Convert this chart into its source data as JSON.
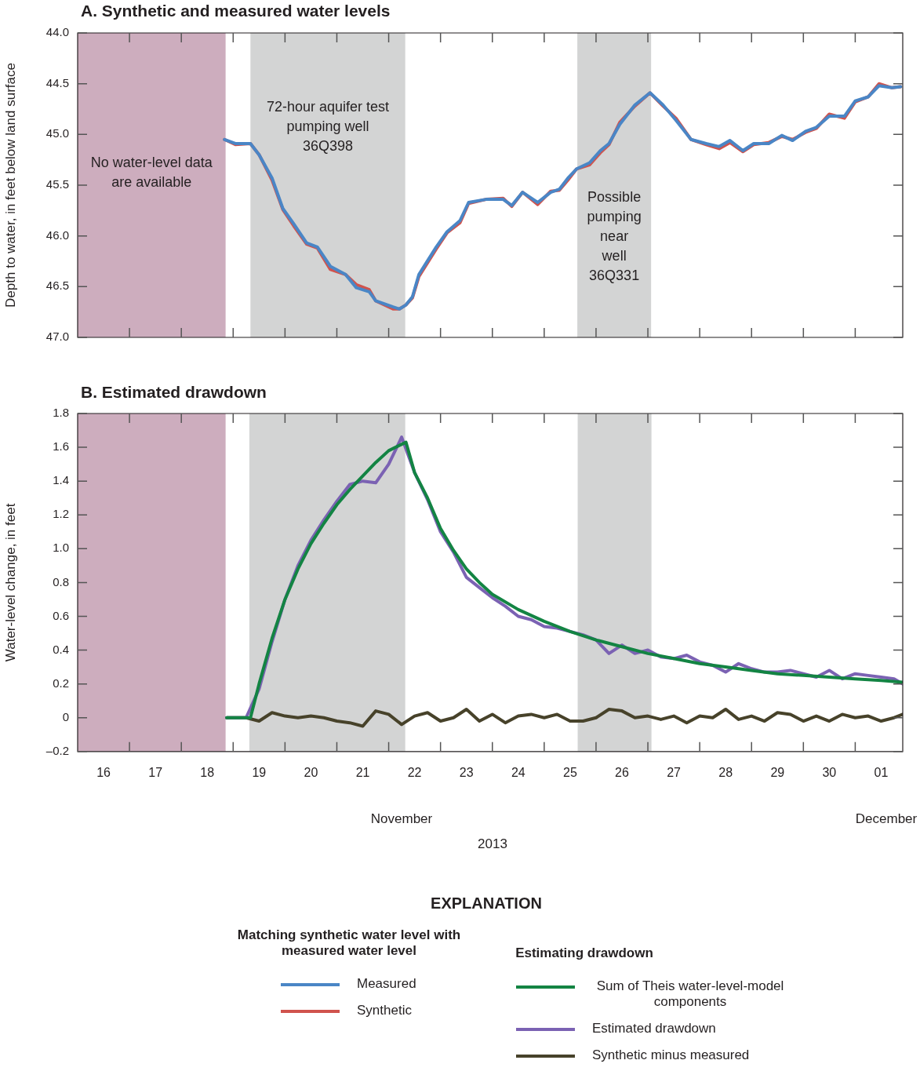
{
  "chart_data": [
    {
      "type": "line",
      "title": "A. Synthetic and measured water levels",
      "ylabel": "Depth to water, in feet below land surface",
      "legend": "bottom",
      "legend_title": "Matching synthetic water level with measured water level",
      "annotations": [
        "EXPLANATION"
      ],
      "marker": "none",
      "tick_labels": "y",
      "xlim": [
        "2013-11-16T00:00",
        "2013-12-01T22:00"
      ],
      "xticks": [
        {
          "value": "2013-11-17",
          "label": null
        },
        {
          "value": "2013-11-18",
          "label": null
        },
        {
          "value": "2013-11-19",
          "label": null
        },
        {
          "value": "2013-11-20",
          "label": null
        },
        {
          "value": "2013-11-21",
          "label": null
        },
        {
          "value": "2013-11-22",
          "label": null
        },
        {
          "value": "2013-11-23",
          "label": null
        },
        {
          "value": "2013-11-24",
          "label": null
        },
        {
          "value": "2013-11-25",
          "label": null
        },
        {
          "value": "2013-11-26",
          "label": null
        },
        {
          "value": "2013-11-27",
          "label": null
        },
        {
          "value": "2013-11-28",
          "label": null
        },
        {
          "value": "2013-11-29",
          "label": null
        },
        {
          "value": "2013-11-30",
          "label": null
        },
        {
          "value": "2013-12-01",
          "label": null
        }
      ],
      "ylim": [
        47,
        44
      ],
      "yticks": [
        {
          "value": 44,
          "label": "44.0"
        },
        44.5,
        {
          "value": 45,
          "label": "45.0"
        },
        45.5,
        {
          "value": 46,
          "label": "46.0"
        },
        46.5,
        {
          "value": 47,
          "label": "47.0"
        }
      ],
      "bands": [
        {
          "axis": "x",
          "from": "2013-11-16T00:00",
          "to": "2013-11-18T20:30",
          "label": "No water-level data are available",
          "color": "#cdadbe"
        },
        {
          "axis": "x",
          "from": "2013-11-19T08:00",
          "to": "2013-11-22T07:40",
          "label": "72-hour aquifer test pumping well 36Q398",
          "color": "#d3d4d4"
        },
        {
          "axis": "x",
          "from": "2013-11-25T15:20",
          "to": "2013-11-27T01:30",
          "label": "Possible pumping near well 36Q331",
          "color": "#d3d4d4"
        }
      ],
      "x": [
        "2013-11-18T20:00",
        "2013-11-19T01:00",
        "2013-11-19T08:00",
        "2013-11-19T12:00",
        "2013-11-19T18:00",
        "2013-11-19T23:00",
        "2013-11-20T04:00",
        "2013-11-20T10:00",
        "2013-11-20T15:00",
        "2013-11-20T21:00",
        "2013-11-21T04:00",
        "2013-11-21T09:00",
        "2013-11-21T15:00",
        "2013-11-21T18:00",
        "2013-11-22T02:00",
        "2013-11-22T05:00",
        "2013-11-22T08:00",
        "2013-11-22T11:00",
        "2013-11-22T14:00",
        "2013-11-22T22:00",
        "2013-11-23T03:00",
        "2013-11-23T09:00",
        "2013-11-23T13:00",
        "2013-11-23T21:00",
        "2013-11-24T05:00",
        "2013-11-24T09:00",
        "2013-11-24T14:00",
        "2013-11-24T21:00",
        "2013-11-25T03:00",
        "2013-11-25T07:00",
        "2013-11-25T11:00",
        "2013-11-25T15:00",
        "2013-11-25T21:00",
        "2013-11-26T02:00",
        "2013-11-26T06:00",
        "2013-11-26T11:00",
        "2013-11-26T18:00",
        "2013-11-27T01:00",
        "2013-11-27T07:00",
        "2013-11-27T13:00",
        "2013-11-27T20:00",
        "2013-11-28T03:00",
        "2013-11-28T09:00",
        "2013-11-28T14:00",
        "2013-11-28T20:00",
        "2013-11-29T01:00",
        "2013-11-29T08:00",
        "2013-11-29T14:00",
        "2013-11-29T19:00",
        "2013-11-30T01:00",
        "2013-11-30T06:00",
        "2013-11-30T12:00",
        "2013-11-30T19:00",
        "2013-12-01T00:00",
        "2013-12-01T06:00",
        "2013-12-01T11:00",
        "2013-12-01T17:00",
        "2013-12-01T21:00"
      ],
      "series": [
        {
          "name": "Measured",
          "color": "#4a86c6",
          "values": [
            45.05,
            45.09,
            45.09,
            45.2,
            45.43,
            45.73,
            45.88,
            46.07,
            46.11,
            46.3,
            46.38,
            46.51,
            46.55,
            46.64,
            46.7,
            46.72,
            46.68,
            46.6,
            46.38,
            46.11,
            45.96,
            45.85,
            45.67,
            45.64,
            45.64,
            45.7,
            45.57,
            45.67,
            45.57,
            45.54,
            45.43,
            45.34,
            45.28,
            45.16,
            45.09,
            44.9,
            44.71,
            44.59,
            44.71,
            44.86,
            45.05,
            45.09,
            45.12,
            45.06,
            45.16,
            45.09,
            45.09,
            45.01,
            45.06,
            44.97,
            44.93,
            44.82,
            44.82,
            44.67,
            44.63,
            44.52,
            44.54,
            44.53
          ]
        },
        {
          "name": "Synthetic",
          "color": "#d0534d",
          "values": [
            45.05,
            45.1,
            45.09,
            45.2,
            45.45,
            45.74,
            45.9,
            46.08,
            46.12,
            46.33,
            46.38,
            46.48,
            46.53,
            46.64,
            46.72,
            46.72,
            46.68,
            46.61,
            46.4,
            46.13,
            45.97,
            45.87,
            45.68,
            45.64,
            45.63,
            45.71,
            45.57,
            45.69,
            45.56,
            45.55,
            45.45,
            45.34,
            45.3,
            45.18,
            45.1,
            44.88,
            44.72,
            44.59,
            44.72,
            44.84,
            45.05,
            45.1,
            45.14,
            45.08,
            45.17,
            45.1,
            45.08,
            45.02,
            45.05,
            44.98,
            44.94,
            44.8,
            44.84,
            44.68,
            44.63,
            44.5,
            44.54,
            44.53
          ]
        }
      ]
    },
    {
      "type": "line",
      "title": "B. Estimated drawdown",
      "ylabel": "Water-level change, in feet",
      "xlabel": "2013",
      "legend": "bottom",
      "legend_title": "Estimating drawdown",
      "annotations": [
        "November",
        "December"
      ],
      "marker": "none",
      "xlim": [
        "2013-11-16T00:00",
        "2013-12-01T22:00"
      ],
      "xticks": [
        {
          "value": "2013-11-16T12:00",
          "label": "16"
        },
        {
          "value": "2013-11-17",
          "label": null
        },
        {
          "value": "2013-11-17T12:00",
          "label": "17"
        },
        {
          "value": "2013-11-18",
          "label": null
        },
        {
          "value": "2013-11-18T12:00",
          "label": "18"
        },
        {
          "value": "2013-11-19",
          "label": null
        },
        {
          "value": "2013-11-19T12:00",
          "label": "19"
        },
        {
          "value": "2013-11-20",
          "label": null
        },
        {
          "value": "2013-11-20T12:00",
          "label": "20"
        },
        {
          "value": "2013-11-21",
          "label": null
        },
        {
          "value": "2013-11-21T12:00",
          "label": "21"
        },
        {
          "value": "2013-11-22",
          "label": null
        },
        {
          "value": "2013-11-22T12:00",
          "label": "22"
        },
        {
          "value": "2013-11-23",
          "label": null
        },
        {
          "value": "2013-11-23T12:00",
          "label": "23"
        },
        {
          "value": "2013-11-24",
          "label": null
        },
        {
          "value": "2013-11-24T12:00",
          "label": "24"
        },
        {
          "value": "2013-11-25",
          "label": null
        },
        {
          "value": "2013-11-25T12:00",
          "label": "25"
        },
        {
          "value": "2013-11-26",
          "label": null
        },
        {
          "value": "2013-11-26T12:00",
          "label": "26"
        },
        {
          "value": "2013-11-27",
          "label": null
        },
        {
          "value": "2013-11-27T12:00",
          "label": "27"
        },
        {
          "value": "2013-11-28",
          "label": null
        },
        {
          "value": "2013-11-28T12:00",
          "label": "28"
        },
        {
          "value": "2013-11-29",
          "label": null
        },
        {
          "value": "2013-11-29T12:00",
          "label": "29"
        },
        {
          "value": "2013-11-30",
          "label": null
        },
        {
          "value": "2013-11-30T12:00",
          "label": "30"
        },
        {
          "value": "2013-12-01",
          "label": null
        },
        {
          "value": "2013-12-01T12:00",
          "label": "01"
        }
      ],
      "ylim": [
        -0.2,
        1.8
      ],
      "yticks": [
        {
          "value": -0.2,
          "label": "–0.2"
        },
        0,
        0.2,
        0.4,
        0.6,
        0.8,
        {
          "value": 1,
          "label": "1.0"
        },
        1.2,
        1.4,
        1.6,
        1.8
      ],
      "bands": [
        {
          "axis": "x",
          "from": "2013-11-16T00:00",
          "to": "2013-11-18T20:30",
          "color": "#cdadbe"
        },
        {
          "axis": "x",
          "from": "2013-11-19T07:30",
          "to": "2013-11-22T07:40",
          "color": "#d3d4d4"
        },
        {
          "axis": "x",
          "from": "2013-11-25T15:30",
          "to": "2013-11-27T01:40",
          "color": "#d3d4d4"
        }
      ],
      "series": [
        {
          "name": "Sum of Theis water-level-model components",
          "color": "#138443",
          "x": [
            "2013-11-18T21:00",
            "2013-11-19T08:00",
            "2013-11-19T12:00",
            "2013-11-19T18:00",
            "2013-11-20T00:00",
            "2013-11-20T06:00",
            "2013-11-20T12:00",
            "2013-11-20T18:00",
            "2013-11-21T00:00",
            "2013-11-21T06:00",
            "2013-11-21T12:00",
            "2013-11-21T18:00",
            "2013-11-22T00:00",
            "2013-11-22T08:00",
            "2013-11-22T12:00",
            "2013-11-22T18:00",
            "2013-11-23T00:00",
            "2013-11-23T06:00",
            "2013-11-23T12:00",
            "2013-11-23T18:00",
            "2013-11-24T00:00",
            "2013-11-24T12:00",
            "2013-11-25T00:00",
            "2013-11-25T12:00",
            "2013-11-26T00:00",
            "2013-11-26T12:00",
            "2013-11-27T00:00",
            "2013-11-27T12:00",
            "2013-11-28T00:00",
            "2013-11-28T12:00",
            "2013-11-29T00:00",
            "2013-11-29T12:00",
            "2013-11-30T00:00",
            "2013-11-30T12:00",
            "2013-12-01T00:00",
            "2013-12-01T12:00",
            "2013-12-01T22:00"
          ],
          "values": [
            0,
            0,
            0.2,
            0.47,
            0.7,
            0.88,
            1.03,
            1.15,
            1.26,
            1.35,
            1.43,
            1.51,
            1.58,
            1.63,
            1.45,
            1.3,
            1.12,
            0.99,
            0.88,
            0.8,
            0.73,
            0.64,
            0.57,
            0.51,
            0.46,
            0.42,
            0.38,
            0.35,
            0.32,
            0.3,
            0.28,
            0.26,
            0.25,
            0.24,
            0.23,
            0.22,
            0.21
          ]
        },
        {
          "name": "Estimated drawdown",
          "color": "#7b62b3",
          "x": [
            "2013-11-18T21:00",
            "2013-11-19T00:00",
            "2013-11-19T06:00",
            "2013-11-19T12:00",
            "2013-11-19T18:00",
            "2013-11-20T00:00",
            "2013-11-20T06:00",
            "2013-11-20T12:00",
            "2013-11-20T18:00",
            "2013-11-21T00:00",
            "2013-11-21T06:00",
            "2013-11-21T12:00",
            "2013-11-21T18:00",
            "2013-11-22T00:00",
            "2013-11-22T06:00",
            "2013-11-22T12:00",
            "2013-11-22T18:00",
            "2013-11-23T00:00",
            "2013-11-23T06:00",
            "2013-11-23T12:00",
            "2013-11-23T18:00",
            "2013-11-24T00:00",
            "2013-11-24T06:00",
            "2013-11-24T12:00",
            "2013-11-24T18:00",
            "2013-11-25T00:00",
            "2013-11-25T06:00",
            "2013-11-25T12:00",
            "2013-11-25T18:00",
            "2013-11-26T00:00",
            "2013-11-26T06:00",
            "2013-11-26T12:00",
            "2013-11-26T18:00",
            "2013-11-27T00:00",
            "2013-11-27T06:00",
            "2013-11-27T12:00",
            "2013-11-27T18:00",
            "2013-11-28T00:00",
            "2013-11-28T06:00",
            "2013-11-28T12:00",
            "2013-11-28T18:00",
            "2013-11-29T00:00",
            "2013-11-29T06:00",
            "2013-11-29T12:00",
            "2013-11-29T18:00",
            "2013-11-30T00:00",
            "2013-11-30T06:00",
            "2013-11-30T12:00",
            "2013-11-30T18:00",
            "2013-12-01T00:00",
            "2013-12-01T06:00",
            "2013-12-01T12:00",
            "2013-12-01T18:00",
            "2013-12-01T22:00"
          ],
          "values": [
            0,
            0,
            0,
            0.17,
            0.45,
            0.7,
            0.9,
            1.05,
            1.17,
            1.28,
            1.38,
            1.4,
            1.39,
            1.5,
            1.66,
            1.45,
            1.29,
            1.1,
            0.98,
            0.83,
            0.77,
            0.71,
            0.66,
            0.6,
            0.58,
            0.54,
            0.53,
            0.51,
            0.49,
            0.46,
            0.38,
            0.43,
            0.38,
            0.4,
            0.36,
            0.35,
            0.37,
            0.33,
            0.31,
            0.27,
            0.32,
            0.29,
            0.27,
            0.27,
            0.28,
            0.26,
            0.24,
            0.28,
            0.23,
            0.26,
            0.25,
            0.24,
            0.23,
            0.2
          ]
        },
        {
          "name": "Synthetic minus measured",
          "color": "#47422a",
          "x": [
            "2013-11-18T21:00",
            "2013-11-19T00:00",
            "2013-11-19T06:00",
            "2013-11-19T12:00",
            "2013-11-19T18:00",
            "2013-11-20T00:00",
            "2013-11-20T06:00",
            "2013-11-20T12:00",
            "2013-11-20T18:00",
            "2013-11-21T00:00",
            "2013-11-21T06:00",
            "2013-11-21T12:00",
            "2013-11-21T18:00",
            "2013-11-22T00:00",
            "2013-11-22T06:00",
            "2013-11-22T12:00",
            "2013-11-22T18:00",
            "2013-11-23T00:00",
            "2013-11-23T06:00",
            "2013-11-23T12:00",
            "2013-11-23T18:00",
            "2013-11-24T00:00",
            "2013-11-24T06:00",
            "2013-11-24T12:00",
            "2013-11-24T18:00",
            "2013-11-25T00:00",
            "2013-11-25T06:00",
            "2013-11-25T12:00",
            "2013-11-25T18:00",
            "2013-11-26T00:00",
            "2013-11-26T06:00",
            "2013-11-26T12:00",
            "2013-11-26T18:00",
            "2013-11-27T00:00",
            "2013-11-27T06:00",
            "2013-11-27T12:00",
            "2013-11-27T18:00",
            "2013-11-28T00:00",
            "2013-11-28T06:00",
            "2013-11-28T12:00",
            "2013-11-28T18:00",
            "2013-11-29T00:00",
            "2013-11-29T06:00",
            "2013-11-29T12:00",
            "2013-11-29T18:00",
            "2013-11-30T00:00",
            "2013-11-30T06:00",
            "2013-11-30T12:00",
            "2013-11-30T18:00",
            "2013-12-01T00:00",
            "2013-12-01T06:00",
            "2013-12-01T12:00",
            "2013-12-01T18:00",
            "2013-12-01T22:00"
          ],
          "values": [
            0,
            0,
            0,
            -0.02,
            0.03,
            0.01,
            0,
            0.01,
            0,
            -0.02,
            -0.03,
            -0.05,
            0.04,
            0.02,
            -0.04,
            0.01,
            0.03,
            -0.02,
            0,
            0.05,
            -0.02,
            0.02,
            -0.03,
            0.01,
            0.02,
            0,
            0.02,
            -0.02,
            -0.02,
            0,
            0.05,
            0.04,
            0,
            0.01,
            -0.01,
            0.01,
            -0.03,
            0.01,
            0,
            0.05,
            -0.01,
            0.01,
            -0.02,
            0.03,
            0.02,
            -0.02,
            0.01,
            -0.02,
            0.02,
            0,
            0.01,
            -0.02,
            0,
            0.02
          ]
        }
      ]
    }
  ]
}
